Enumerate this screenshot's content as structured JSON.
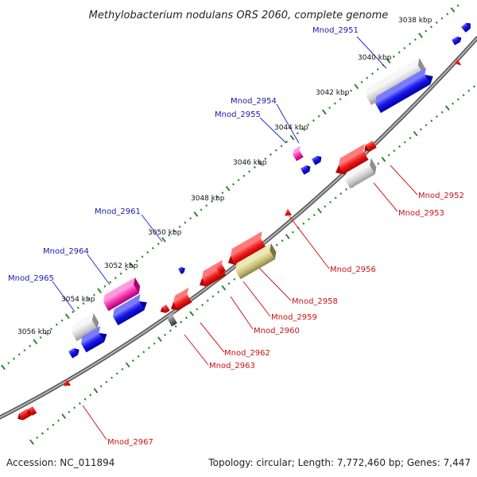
{
  "title": "Methylobacterium nodulans ORS 2060, complete genome",
  "footer": {
    "accession": "Accession: NC_011894",
    "summary": "Topology: circular; Length: 7,772,460 bp; Genes: 7,447"
  },
  "kbp_labels": [
    "3038 kbp",
    "3040 kbp",
    "3042 kbp",
    "3044 kbp",
    "3046 kbp",
    "3048 kbp",
    "3050 kbp",
    "3052 kbp",
    "3054 kbp",
    "3056 kbp"
  ],
  "gene_labels_top": [
    "Mnod_2951",
    "Mnod_2954",
    "Mnod_2955",
    "Mnod_2961",
    "Mnod_2964",
    "Mnod_2965"
  ],
  "gene_labels_bottom": [
    "Mnod_2952",
    "Mnod_2953",
    "Mnod_2956",
    "Mnod_2958",
    "Mnod_2959",
    "Mnod_2960",
    "Mnod_2962",
    "Mnod_2963",
    "Mnod_2967"
  ],
  "colors": {
    "backbone": "#888888",
    "tick_green": "#2a8a2a",
    "gene_red": "#e81010",
    "gene_blue": "#1010e0",
    "gene_grey": "#c8c8c8",
    "gene_pink": "#ee2aa8",
    "gene_olive": "#c8c07a",
    "gene_dark": "#555555"
  }
}
